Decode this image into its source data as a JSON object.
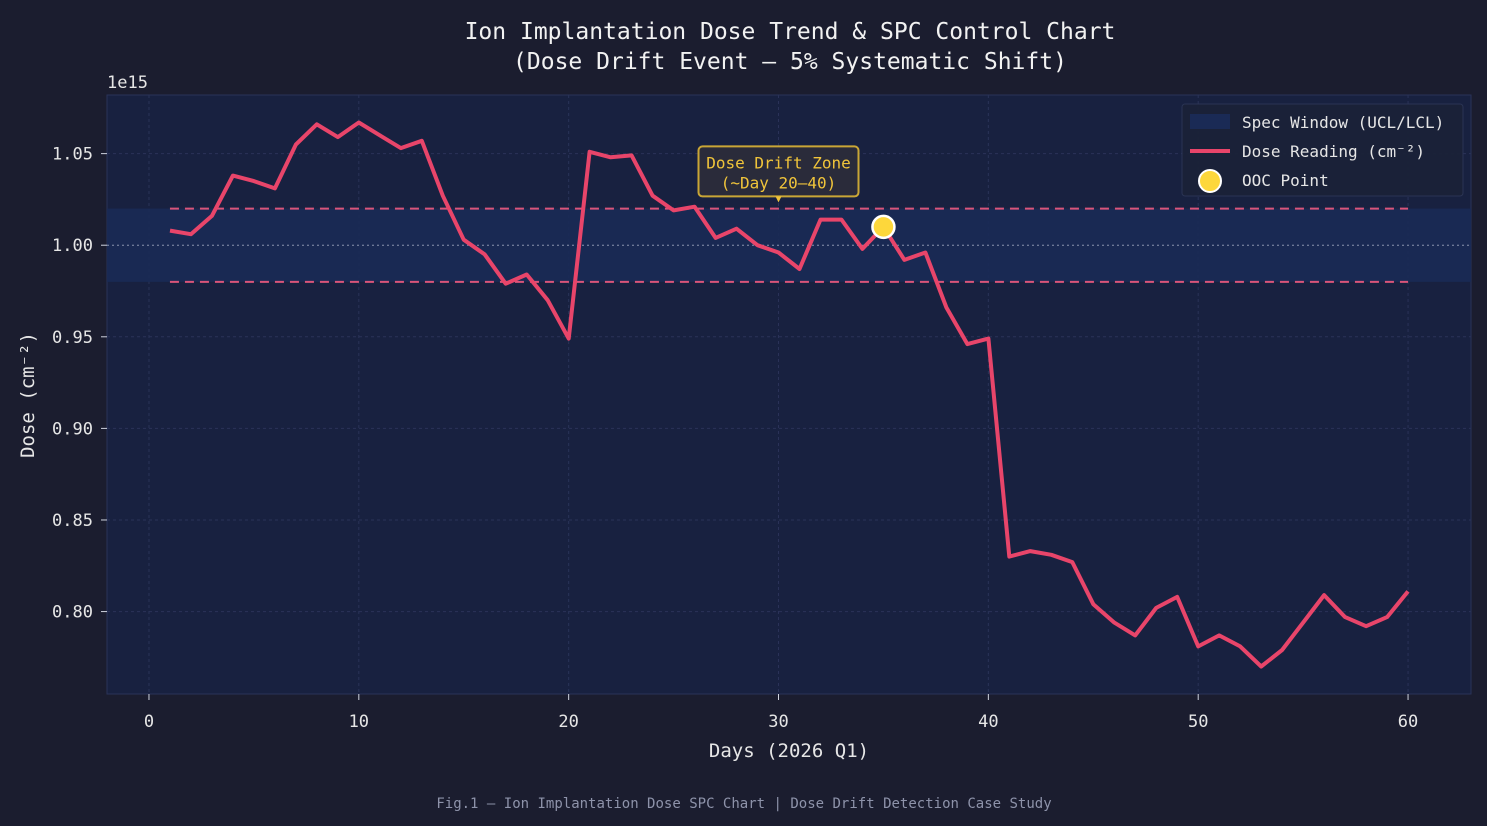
{
  "chart_data": {
    "type": "line",
    "title": "Ion Implantation Dose Trend & SPC Control Chart",
    "subtitle": "(Dose Drift Event – 5% Systematic Shift)",
    "xlabel": "Days (2026 Q1)",
    "ylabel": "Dose (cm⁻²)",
    "y_offset_label": "1e15",
    "xlim": [
      -2,
      63
    ],
    "ylim": [
      0.755,
      1.082
    ],
    "x_ticks": [
      0,
      10,
      20,
      30,
      40,
      50,
      60
    ],
    "y_ticks": [
      0.8,
      0.85,
      0.9,
      0.95,
      1.0,
      1.05
    ],
    "grid": true,
    "legend_position": "top-right",
    "target": 1.0,
    "ucl": 1.02,
    "lcl": 0.98,
    "series": [
      {
        "name": "Dose Reading (cm⁻²)",
        "color": "#e8456a",
        "x": [
          1,
          2,
          3,
          4,
          5,
          6,
          7,
          8,
          9,
          10,
          11,
          12,
          13,
          14,
          15,
          16,
          17,
          18,
          19,
          20,
          21,
          22,
          23,
          24,
          25,
          26,
          27,
          28,
          29,
          30,
          31,
          32,
          33,
          34,
          35,
          36,
          37,
          38,
          39,
          40,
          41,
          42,
          43,
          44,
          45,
          46,
          47,
          48,
          49,
          50,
          51,
          52,
          53,
          54,
          55,
          56,
          57,
          58,
          59,
          60
        ],
        "y": [
          1.008,
          1.006,
          1.016,
          1.038,
          1.035,
          1.031,
          1.055,
          1.066,
          1.059,
          1.067,
          1.06,
          1.053,
          1.057,
          1.027,
          1.003,
          0.995,
          0.979,
          0.984,
          0.97,
          0.949,
          1.051,
          1.048,
          1.049,
          1.027,
          1.019,
          1.021,
          1.004,
          1.009,
          1.0,
          0.996,
          0.987,
          1.014,
          1.014,
          0.998,
          1.01,
          0.992,
          0.996,
          0.966,
          0.946,
          0.949,
          0.83,
          0.833,
          0.831,
          0.827,
          0.804,
          0.794,
          0.787,
          0.802,
          0.808,
          0.781,
          0.787,
          0.781,
          0.77,
          0.779,
          0.794,
          0.809,
          0.797,
          0.792,
          0.797,
          0.811
        ]
      }
    ],
    "ooc_points": [
      {
        "x": 35,
        "y": 1.01
      }
    ],
    "annotation": {
      "text_line1": "Dose Drift Zone",
      "text_line2": "(~Day 20–40)",
      "x": 30,
      "y": 1.025
    },
    "legend": [
      {
        "label": "Spec Window (UCL/LCL)",
        "kind": "patch"
      },
      {
        "label": "Dose Reading (cm⁻²)",
        "kind": "line"
      },
      {
        "label": "OOC Point",
        "kind": "marker"
      }
    ],
    "caption": "Fig.1 – Ion Implantation Dose SPC Chart | Dose Drift Detection Case Study",
    "colors": {
      "background": "#1b1d2f",
      "plot_bg": "#182140",
      "spec_band": "#1a2a55",
      "line": "#e8456a",
      "limits": "#d9557a",
      "ooc": "#fdd73b",
      "annotation": "#f0c43a",
      "text": "#e6e6e6"
    }
  }
}
